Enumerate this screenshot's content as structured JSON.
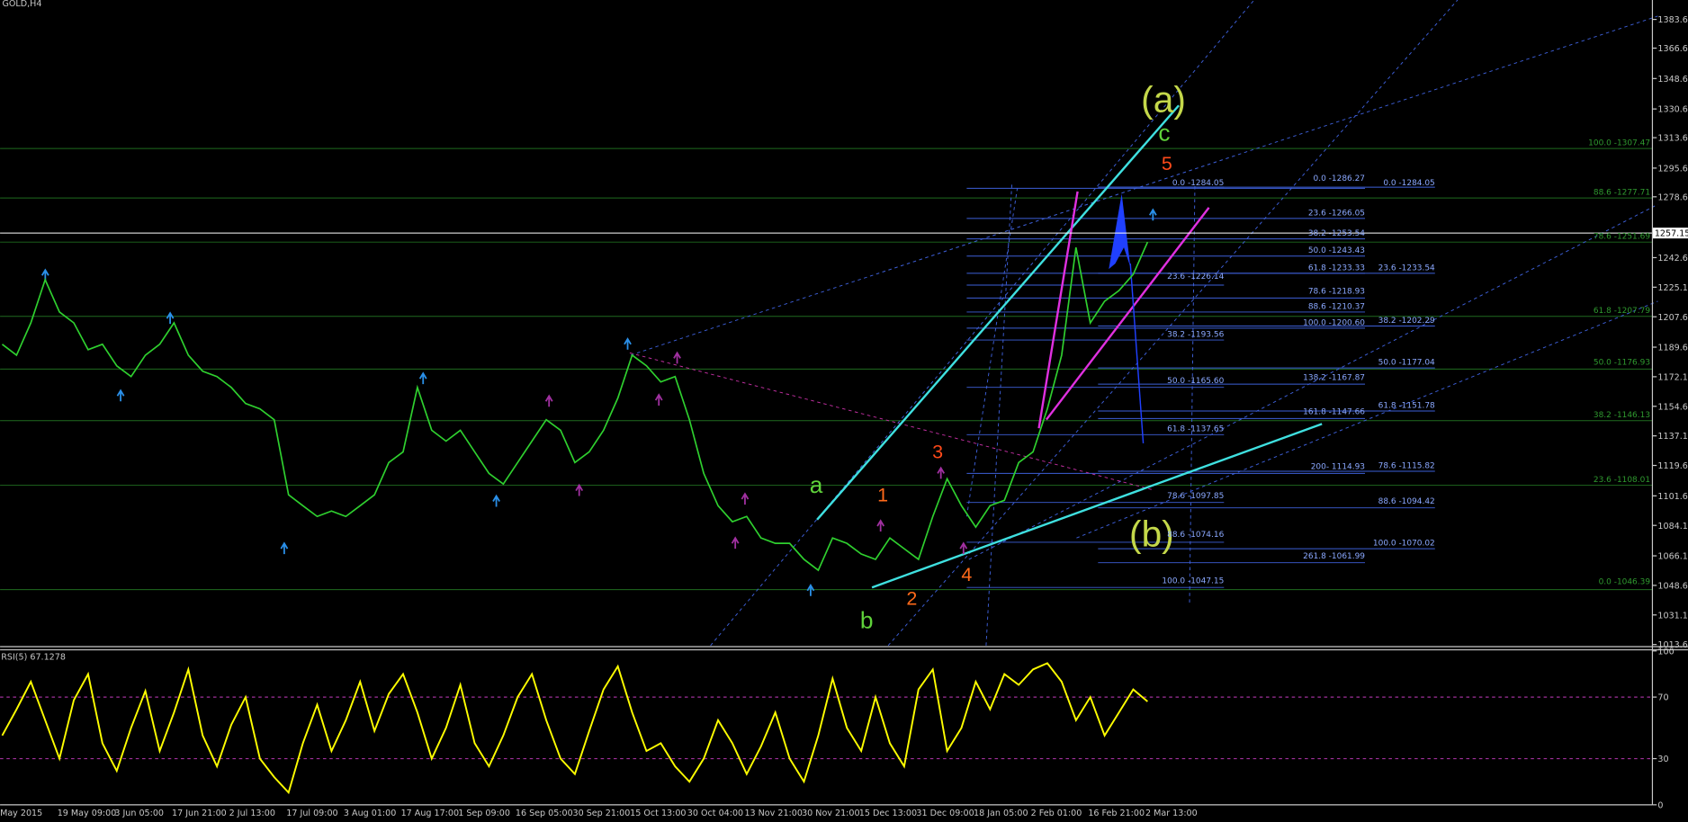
{
  "chart_data": [
    {
      "type": "line",
      "title": "GOLD,H4",
      "categories": [
        "May 2015",
        null,
        null,
        null,
        "19 May 09:00",
        null,
        null,
        null,
        "3 Jun 05:00",
        null,
        null,
        null,
        "17 Jun 21:00",
        null,
        null,
        null,
        "2 Jul 13:00",
        null,
        null,
        null,
        "17 Jul 09:00",
        null,
        null,
        null,
        "3 Aug 01:00",
        null,
        null,
        null,
        "17 Aug 17:00",
        null,
        null,
        null,
        "1 Sep 09:00",
        null,
        null,
        null,
        "16 Sep 05:00",
        null,
        null,
        null,
        "30 Sep 21:00",
        null,
        null,
        null,
        "15 Oct 13:00",
        null,
        null,
        null,
        "30 Oct 04:00",
        null,
        null,
        null,
        "13 Nov 21:00",
        null,
        null,
        null,
        "30 Nov 21:00",
        null,
        null,
        null,
        "15 Dec 13:00",
        null,
        null,
        null,
        "31 Dec 09:00",
        null,
        null,
        null,
        "18 Jan 05:00",
        null,
        null,
        null,
        "2 Feb 01:00",
        null,
        null,
        null,
        "16 Feb 21:00",
        null,
        null,
        null,
        "2 Mar 13:00"
      ],
      "series": [
        {
          "color": "#2fd02f",
          "values": [
            1191.3,
            1184.9,
            1204.0,
            1229.5,
            1210.4,
            1204.0,
            1188.1,
            1191.3,
            1178.6,
            1172.2,
            1184.9,
            1191.3,
            1204.0,
            1184.9,
            1175.4,
            1172.2,
            1165.8,
            1156.3,
            1153.1,
            1146.7,
            1102.2,
            1095.8,
            1089.4,
            1092.6,
            1089.4,
            1095.8,
            1102.2,
            1121.3,
            1127.6,
            1165.8,
            1140.4,
            1134.0,
            1140.4,
            1127.6,
            1114.9,
            1108.6,
            1121.3,
            1134.0,
            1146.7,
            1140.4,
            1121.3,
            1127.6,
            1140.4,
            1159.5,
            1184.9,
            1178.6,
            1169.0,
            1172.2,
            1146.7,
            1114.9,
            1095.8,
            1086.3,
            1089.4,
            1076.7,
            1073.5,
            1073.5,
            1064.0,
            1057.6,
            1076.7,
            1073.5,
            1067.2,
            1064.0,
            1076.7,
            1070.3,
            1064.0,
            1089.4,
            1111.7,
            1095.8,
            1083.1,
            1095.8,
            1099.0,
            1121.3,
            1127.6,
            1153.1,
            1184.9,
            1248.6,
            1204.0,
            1216.8,
            1223.1,
            1232.7,
            1251.8
          ]
        }
      ],
      "current_price": 1257.15,
      "ylim": [
        1013.0,
        1395.1
      ],
      "yticks": [
        1383.61,
        1366.61,
        1348.61,
        1330.61,
        1313.61,
        1295.61,
        1278.61,
        1242.61,
        1225.11,
        1207.61,
        1189.61,
        1172.11,
        1154.61,
        1137.11,
        1119.61,
        1101.61,
        1084.11,
        1066.11,
        1048.61,
        1031.11,
        1013.61
      ],
      "annotations": [
        "(a)",
        "c",
        "5",
        "a",
        "1",
        "3",
        "2",
        "4",
        "b",
        "(b)"
      ],
      "fib_labels": [
        "0.0 -1286.27",
        "23.6 -1266.05",
        "38.2 -1253.54",
        "50.0 -1243.43",
        "61.8 -1233.33",
        "78.6 -1218.93",
        "88.6 -1210.37",
        "100.0 -1200.60",
        "0.0 -1284.05",
        "23.6 -1226.14",
        "38.2 -1193.56",
        "50.0 -1165.60",
        "61.8 -1137.65",
        "78.6 -1097.85",
        "88.6 -1074.16",
        "100.0 -1047.15",
        "138.2 -1167.87",
        "161.8 -1147.66",
        "200- 1114.93",
        "261.8 -1061.99",
        "0.0 -1284.05",
        "23.6 -1233.54",
        "38.2 -1202.29",
        "50.0 -1177.04",
        "61.8 -1151.78",
        "78.6 -1115.82",
        "88.6 -1094.42",
        "100.0 -1070.02",
        "100.0 -1307.47",
        "88.6 -1277.71",
        "78.6 -1251.69",
        "61.8 -1207.79",
        "50.0 -1176.93",
        "38.2 -1146.13",
        "23.6 -1108.01",
        "0.0 -1046.39"
      ]
    },
    {
      "type": "line",
      "title": "RSI(5) 67.1278",
      "series": [
        {
          "color": "#ffff00",
          "values": [
            45,
            62,
            80,
            55,
            30,
            68,
            85,
            40,
            22,
            50,
            74,
            35,
            60,
            88,
            45,
            25,
            52,
            70,
            30,
            18,
            8,
            40,
            65,
            35,
            55,
            80,
            48,
            72,
            85,
            60,
            30,
            50,
            78,
            40,
            25,
            45,
            70,
            85,
            55,
            30,
            20,
            48,
            75,
            90,
            60,
            35,
            40,
            25,
            15,
            30,
            55,
            40,
            20,
            38,
            60,
            30,
            15,
            45,
            82,
            50,
            35,
            70,
            40,
            25,
            75,
            88,
            35,
            50,
            80,
            62,
            85,
            78,
            88,
            92,
            80,
            55,
            70,
            45,
            60,
            75,
            67.1278
          ]
        }
      ],
      "ylim": [
        0,
        100
      ],
      "yticks": [
        0,
        30,
        70,
        100
      ]
    }
  ]
}
